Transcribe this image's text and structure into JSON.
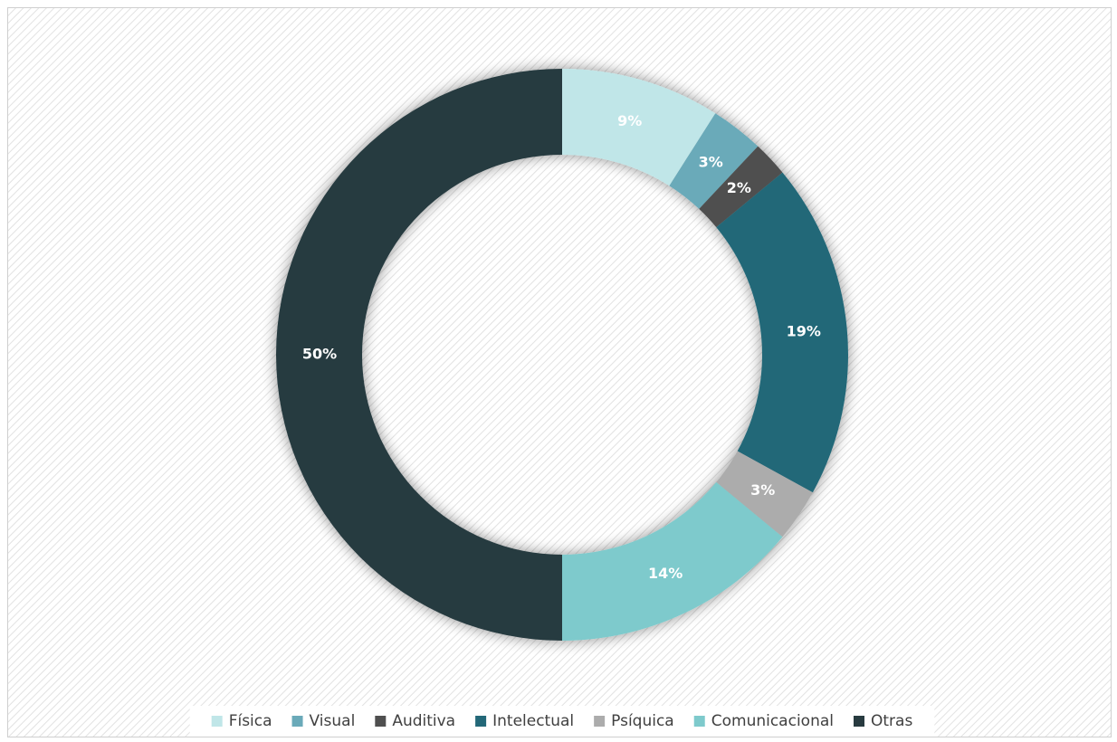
{
  "chart_data": {
    "type": "donut",
    "categories": [
      "Física",
      "Visual",
      "Auditiva",
      "Intelectual",
      "Psíquica",
      "Comunicacional",
      "Otras"
    ],
    "values": [
      9,
      3,
      2,
      19,
      3,
      14,
      50
    ],
    "value_labels": [
      "9%",
      "3%",
      "2%",
      "19%",
      "3%",
      "14%",
      "50%"
    ],
    "colors": [
      "#c0e6e8",
      "#6aaab9",
      "#4f4f4f",
      "#236878",
      "#acacac",
      "#7ecacc",
      "#283b40"
    ],
    "legend": "bottom"
  }
}
